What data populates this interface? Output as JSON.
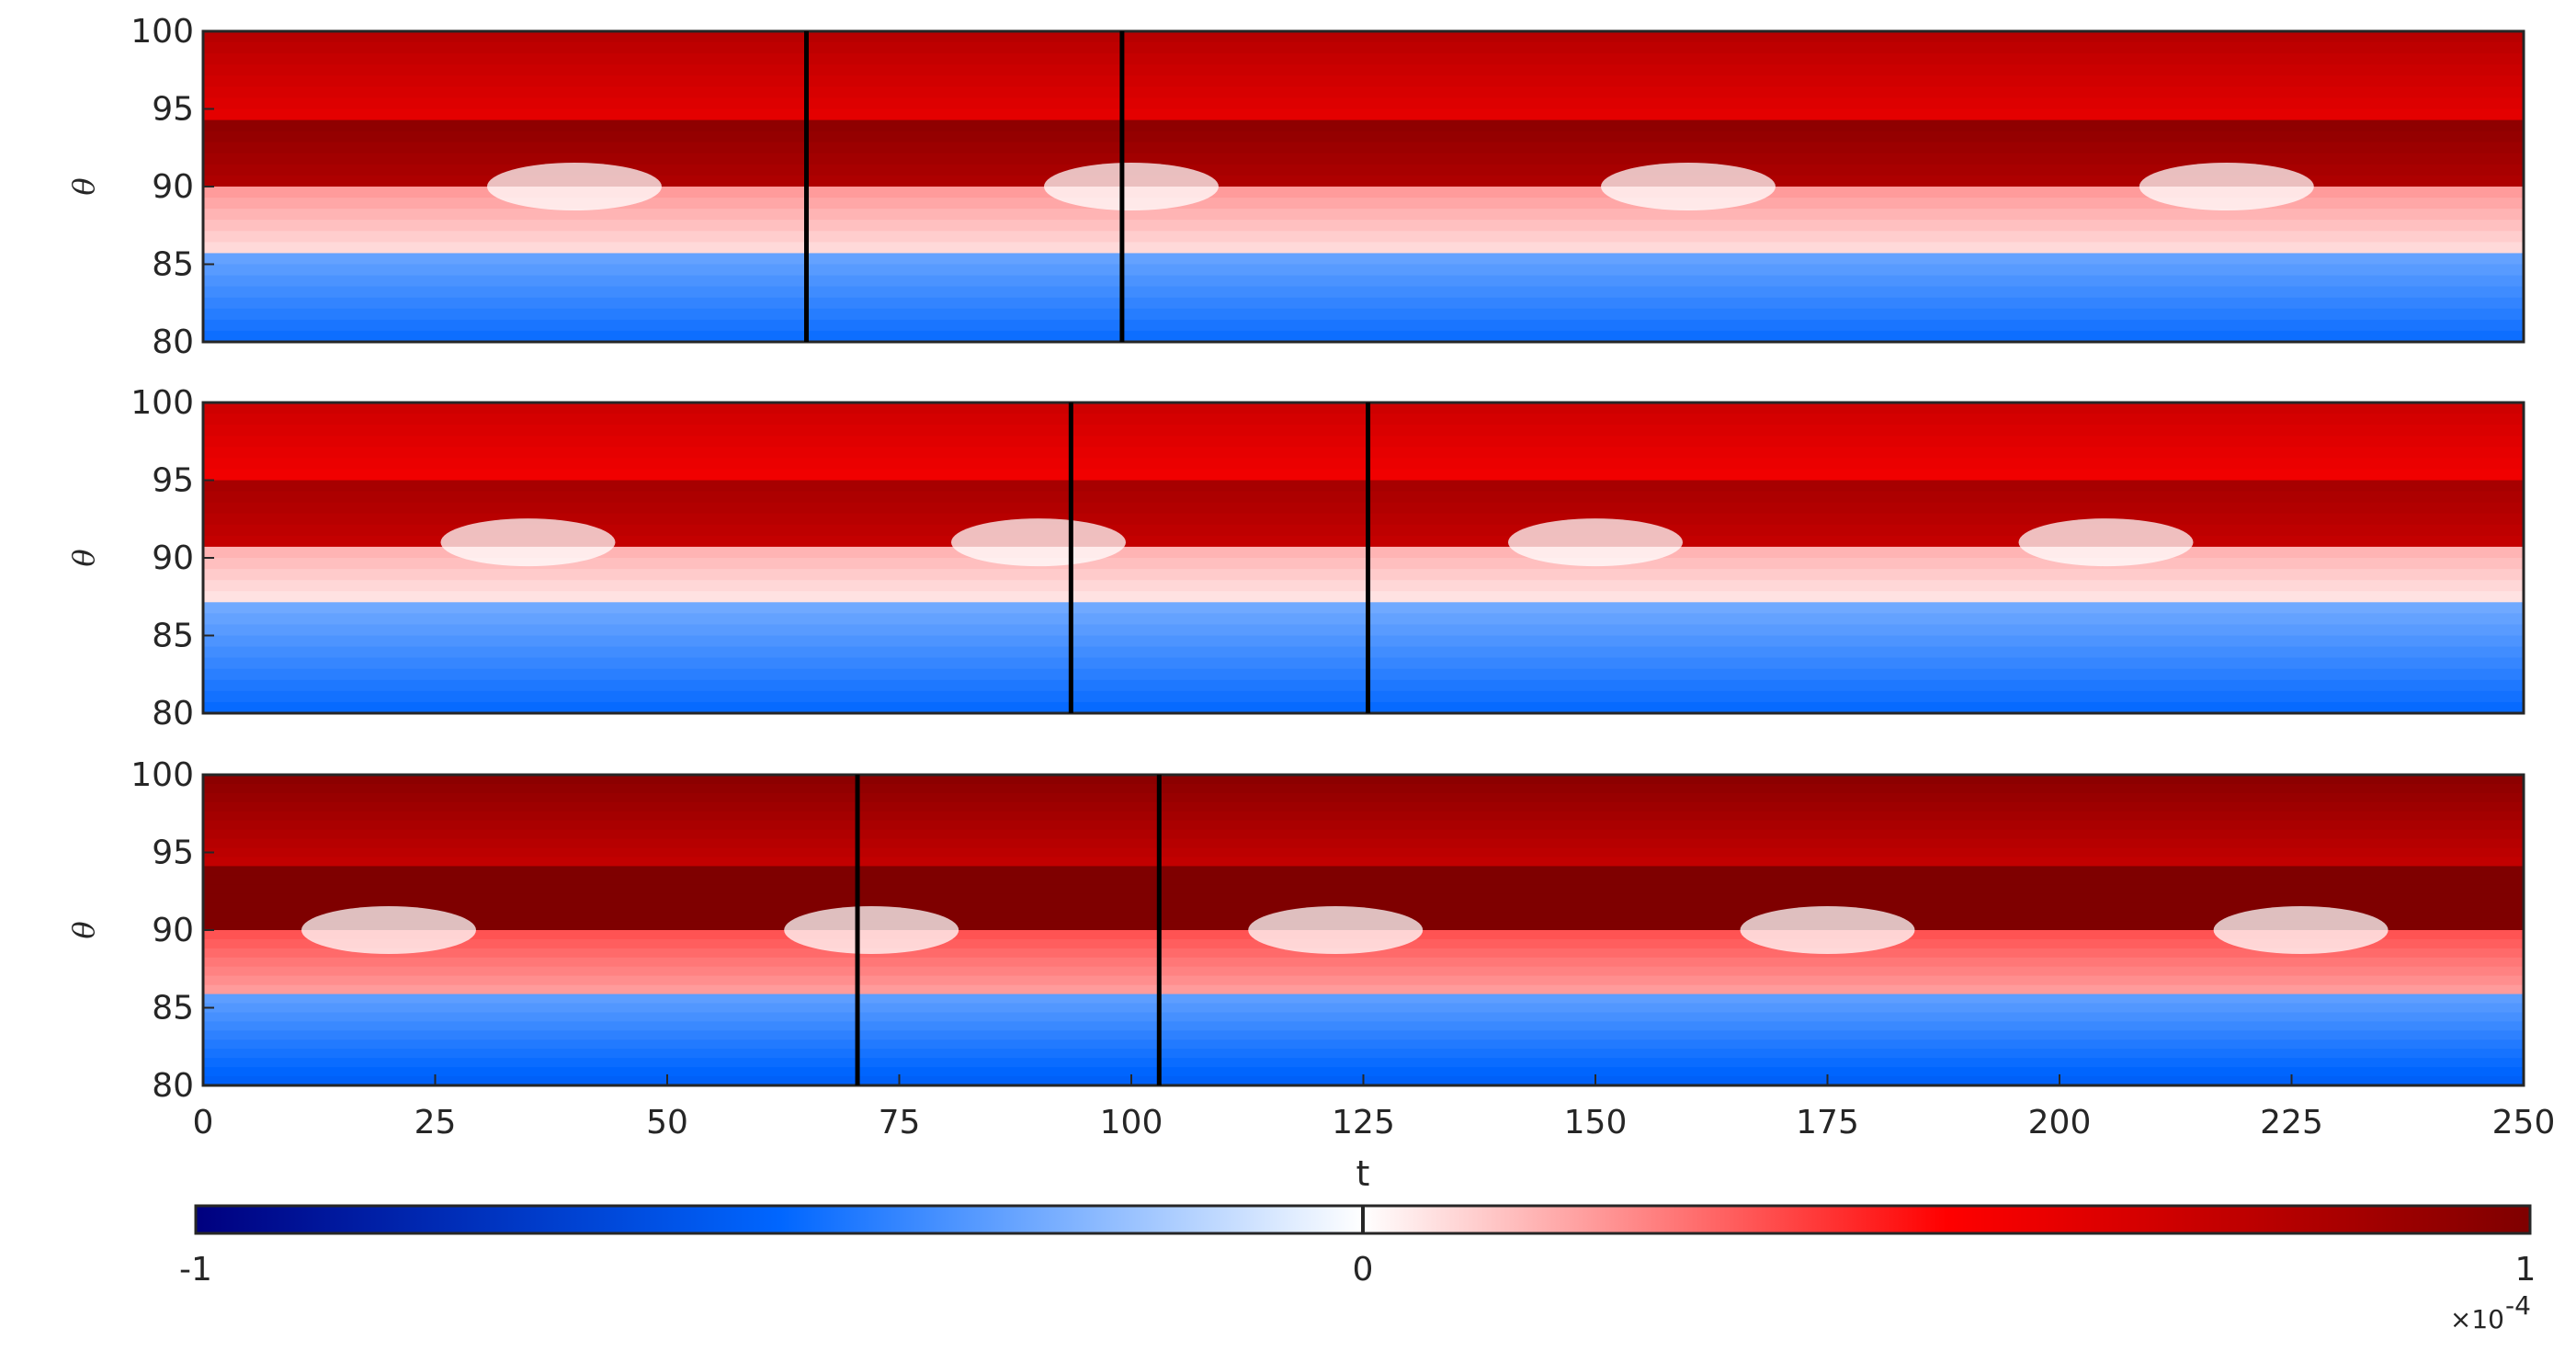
{
  "chart_data": [
    {
      "type": "heatmap",
      "panel": "top",
      "xlim": [
        0,
        250
      ],
      "ylim": [
        80,
        100
      ],
      "ylabel": "θ",
      "yticks": [
        "80",
        "85",
        "90",
        "95",
        "100"
      ],
      "stripe_count": 14,
      "amplitude": 0.85,
      "defect_times": [
        40,
        100,
        160,
        218
      ],
      "defect_theta": 90,
      "vertical_markers": [
        65,
        99
      ]
    },
    {
      "type": "heatmap",
      "panel": "middle",
      "xlim": [
        0,
        250
      ],
      "ylim": [
        80,
        100
      ],
      "ylabel": "θ",
      "yticks": [
        "80",
        "85",
        "90",
        "95",
        "100"
      ],
      "stripe_count": 14,
      "amplitude": 0.8,
      "defect_times": [
        35,
        90,
        150,
        205
      ],
      "defect_theta": 91,
      "vertical_markers": [
        93.5,
        125.5
      ]
    },
    {
      "type": "heatmap",
      "panel": "bottom",
      "xlim": [
        0,
        250
      ],
      "ylim": [
        80,
        100
      ],
      "ylabel": "θ",
      "xlabel": "t",
      "yticks": [
        "80",
        "85",
        "90",
        "95",
        "100"
      ],
      "xticks": [
        "0",
        "25",
        "50",
        "75",
        "100",
        "125",
        "150",
        "175",
        "200",
        "225",
        "250"
      ],
      "stripe_count": 17,
      "amplitude": 1.0,
      "defect_times": [
        20,
        72,
        122,
        175,
        226
      ],
      "defect_theta": 90,
      "vertical_markers": [
        70.5,
        103
      ]
    }
  ],
  "colorbar": {
    "min_label": "-1",
    "mid_label": "0",
    "max_label": "1",
    "multiplier": "×10",
    "exponent": "-4",
    "colors": {
      "neg": "#00007f",
      "mid": "#ffffff",
      "pos": "#7f0000",
      "blue": "#0066ff",
      "red": "#ff0000"
    }
  }
}
